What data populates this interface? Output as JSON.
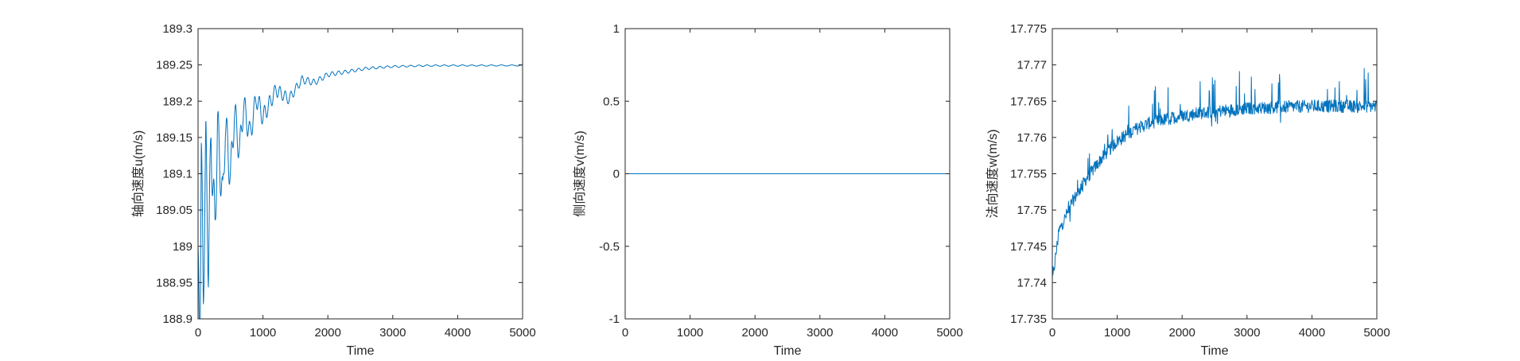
{
  "chart_data": [
    {
      "type": "line",
      "xlabel": "Time",
      "ylabel": "轴向速度u(m/s)",
      "xlim": [
        0,
        5000
      ],
      "ylim": [
        188.9,
        189.3
      ],
      "xticks": [
        "0",
        "1000",
        "2000",
        "3000",
        "4000",
        "5000"
      ],
      "yticks": [
        "188.9",
        "188.95",
        "189",
        "189.05",
        "189.1",
        "189.15",
        "189.2",
        "189.25",
        "189.3"
      ],
      "grid": false,
      "color": "#0072BD",
      "series": [
        {
          "x": [
            0,
            30,
            50,
            80,
            120,
            160,
            200,
            260,
            300,
            380,
            420,
            500,
            560,
            640,
            700,
            800,
            900,
            1000,
            1200,
            1400,
            1600,
            1800,
            2000,
            2300,
            2600,
            3000,
            3500,
            4000,
            4500,
            5000
          ],
          "y": [
            189.0,
            188.96,
            189.17,
            188.99,
            189.18,
            189.02,
            189.19,
            189.06,
            189.2,
            189.09,
            189.2,
            189.12,
            189.21,
            189.15,
            189.215,
            189.17,
            189.22,
            189.19,
            189.225,
            189.21,
            189.235,
            189.23,
            189.24,
            189.243,
            189.247,
            189.249,
            189.25,
            189.25,
            189.25,
            189.25
          ]
        }
      ]
    },
    {
      "type": "line",
      "xlabel": "Time",
      "ylabel": "侧向速度v(m/s)",
      "xlim": [
        0,
        5000
      ],
      "ylim": [
        -1,
        1
      ],
      "xticks": [
        "0",
        "1000",
        "2000",
        "3000",
        "4000",
        "5000"
      ],
      "yticks": [
        "-1",
        "-0.5",
        "0",
        "0.5",
        "1"
      ],
      "grid": false,
      "color": "#0072BD",
      "series": [
        {
          "x": [
            0,
            5000
          ],
          "y": [
            0,
            0
          ]
        }
      ]
    },
    {
      "type": "line",
      "xlabel": "Time",
      "ylabel": "法向速度w(m/s)",
      "xlim": [
        0,
        5000
      ],
      "ylim": [
        17.735,
        17.775
      ],
      "xticks": [
        "0",
        "1000",
        "2000",
        "3000",
        "4000",
        "5000"
      ],
      "yticks": [
        "17.735",
        "17.74",
        "17.745",
        "17.75",
        "17.755",
        "17.76",
        "17.765",
        "17.77",
        "17.775"
      ],
      "grid": false,
      "color": "#0072BD",
      "series": [
        {
          "x": [
            0,
            100,
            200,
            300,
            500,
            750,
            1000,
            1250,
            1500,
            1750,
            2000,
            2250,
            2500,
            2750,
            3000,
            3250,
            3500,
            4000,
            4500,
            5000
          ],
          "y": [
            17.74,
            17.747,
            17.749,
            17.751,
            17.754,
            17.757,
            17.7595,
            17.761,
            17.762,
            17.7625,
            17.763,
            17.7633,
            17.7636,
            17.7638,
            17.764,
            17.7641,
            17.7642,
            17.7643,
            17.7643,
            17.7643
          ]
        }
      ]
    }
  ]
}
